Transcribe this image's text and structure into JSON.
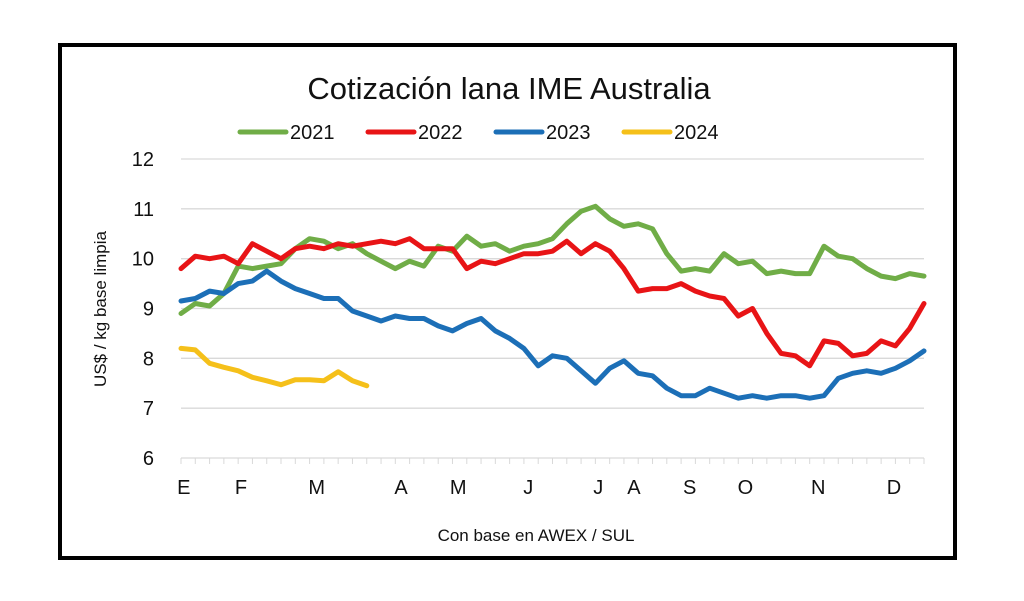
{
  "chart_data": {
    "type": "line",
    "title": "Cotización lana IME Australia",
    "xlabel": "Con base en AWEX / SUL",
    "ylabel": "US$ / kg base limpia",
    "ylim": [
      6,
      12
    ],
    "yticks": [
      6,
      7,
      8,
      9,
      10,
      11,
      12
    ],
    "grid": true,
    "legend": "top",
    "x_unit": "week of year (0-52)",
    "xlim": [
      0,
      52
    ],
    "month_labels": [
      {
        "label": "E",
        "week": 0.2
      },
      {
        "label": "F",
        "week": 4.2
      },
      {
        "label": "M",
        "week": 9.5
      },
      {
        "label": "A",
        "week": 15.4
      },
      {
        "label": "M",
        "week": 19.4
      },
      {
        "label": "J",
        "week": 24.3
      },
      {
        "label": "J",
        "week": 29.2
      },
      {
        "label": "A",
        "week": 31.7
      },
      {
        "label": "S",
        "week": 35.6
      },
      {
        "label": "O",
        "week": 39.5
      },
      {
        "label": "N",
        "week": 44.6
      },
      {
        "label": "D",
        "week": 49.9
      }
    ],
    "series": [
      {
        "name": "2021",
        "color": "#70AD47",
        "values": [
          8.9,
          9.1,
          9.05,
          9.3,
          9.85,
          9.8,
          9.85,
          9.9,
          10.2,
          10.4,
          10.35,
          10.2,
          10.3,
          10.1,
          9.95,
          9.8,
          9.95,
          9.85,
          10.25,
          10.15,
          10.45,
          10.25,
          10.3,
          10.15,
          10.25,
          10.3,
          10.4,
          10.7,
          10.95,
          11.05,
          10.8,
          10.65,
          10.7,
          10.6,
          10.1,
          9.75,
          9.8,
          9.75,
          10.1,
          9.9,
          9.95,
          9.7,
          9.75,
          9.7,
          9.7,
          10.25,
          10.05,
          10.0,
          9.8,
          9.65,
          9.6,
          9.7,
          9.65
        ]
      },
      {
        "name": "2022",
        "color": "#E81416",
        "values": [
          9.8,
          10.05,
          10.0,
          10.05,
          9.9,
          10.3,
          10.15,
          10.0,
          10.2,
          10.25,
          10.2,
          10.3,
          10.25,
          10.3,
          10.35,
          10.3,
          10.4,
          10.2,
          10.2,
          10.2,
          9.8,
          9.95,
          9.9,
          10.0,
          10.1,
          10.1,
          10.15,
          10.35,
          10.1,
          10.3,
          10.15,
          9.8,
          9.35,
          9.4,
          9.4,
          9.5,
          9.35,
          9.25,
          9.2,
          8.85,
          9.0,
          8.5,
          8.1,
          8.05,
          7.85,
          8.35,
          8.3,
          8.05,
          8.1,
          8.35,
          8.25,
          8.6,
          9.1
        ]
      },
      {
        "name": "2023",
        "color": "#1C6FB7",
        "values": [
          9.15,
          9.2,
          9.35,
          9.3,
          9.5,
          9.55,
          9.75,
          9.55,
          9.4,
          9.3,
          9.2,
          9.2,
          8.95,
          8.85,
          8.75,
          8.85,
          8.8,
          8.8,
          8.65,
          8.55,
          8.7,
          8.8,
          8.55,
          8.4,
          8.2,
          7.85,
          8.05,
          8.0,
          7.75,
          7.5,
          7.8,
          7.95,
          7.7,
          7.65,
          7.4,
          7.25,
          7.25,
          7.4,
          7.3,
          7.2,
          7.25,
          7.2,
          7.25,
          7.25,
          7.2,
          7.25,
          7.6,
          7.7,
          7.75,
          7.7,
          7.8,
          7.95,
          8.15
        ]
      },
      {
        "name": "2024",
        "color": "#F5C01A",
        "values": [
          8.2,
          8.17,
          7.9,
          7.82,
          7.75,
          7.62,
          7.55,
          7.47,
          7.57,
          7.57,
          7.55,
          7.73,
          7.55,
          7.45
        ]
      }
    ]
  }
}
